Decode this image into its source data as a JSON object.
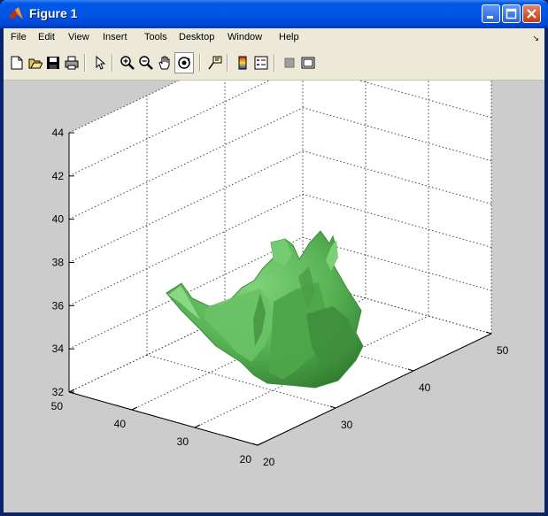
{
  "window": {
    "title": "Figure 1",
    "colors": {
      "titlebar": "#0055e5",
      "canvas": "#cccccc",
      "surface": "#5fb85c"
    }
  },
  "menu": [
    "File",
    "Edit",
    "View",
    "Insert",
    "Tools",
    "Desktop",
    "Window",
    "Help"
  ],
  "toolbar": {
    "icons": [
      "new-figure-icon",
      "open-file-icon",
      "save-figure-icon",
      "print-figure-icon",
      "edit-plot-arrow-icon",
      "zoom-in-icon",
      "zoom-out-icon",
      "pan-hand-icon",
      "rotate-3d-icon",
      "data-cursor-icon",
      "insert-colorbar-icon",
      "insert-legend-icon",
      "hide-plot-tools-icon",
      "show-plot-tools-icon"
    ],
    "pressed": "rotate-3d-icon"
  },
  "chart_data": {
    "type": "surface",
    "title": "",
    "xlabel": "",
    "ylabel": "",
    "zlabel": "",
    "x_ticks": [
      "20",
      "30",
      "40",
      "50"
    ],
    "y_ticks": [
      "20",
      "30",
      "40",
      "50"
    ],
    "z_ticks": [
      "32",
      "34",
      "36",
      "38",
      "40",
      "42",
      "44"
    ],
    "xlim": [
      20,
      50
    ],
    "ylim": [
      20,
      50
    ],
    "zlim": [
      32,
      44
    ],
    "grid": true,
    "shape": "isosurface (green 3D blob)"
  }
}
